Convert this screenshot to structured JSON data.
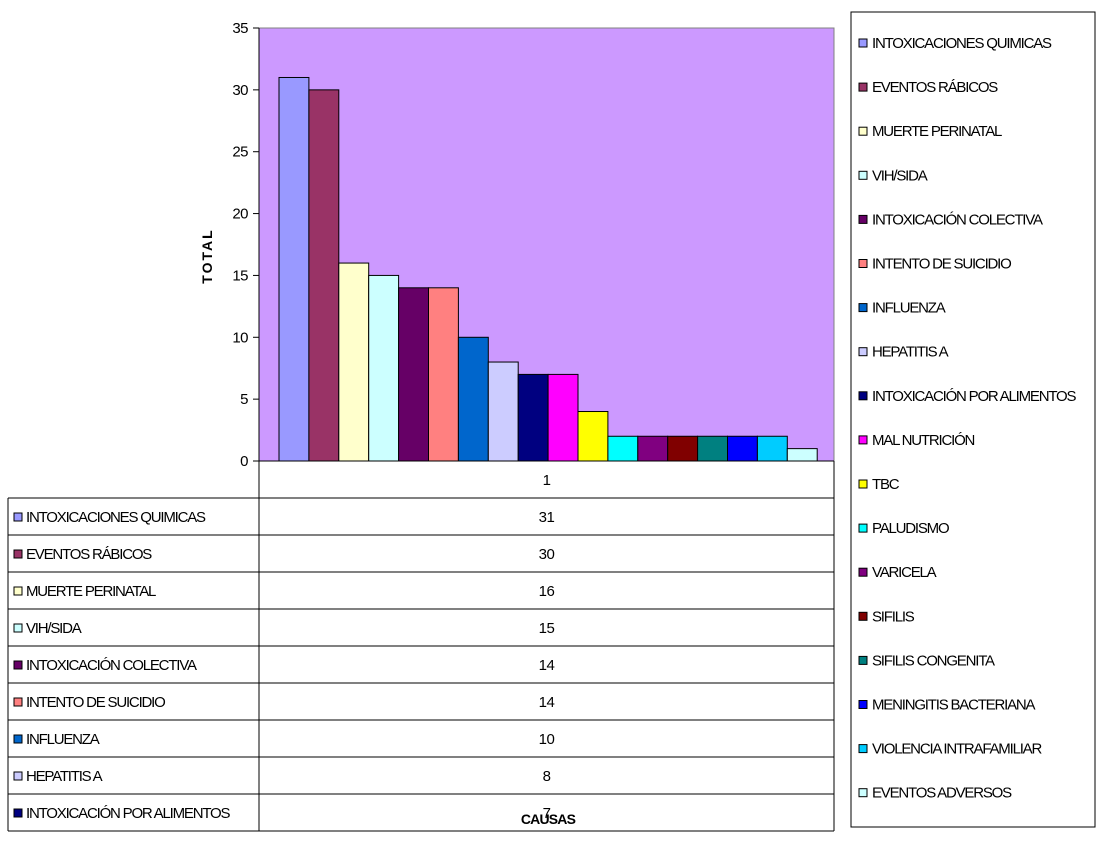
{
  "chart_data": {
    "type": "bar",
    "ylabel": "TOTAL",
    "xlabel": "CAUSAS",
    "categories": [
      "1"
    ],
    "ylim": [
      0,
      35
    ],
    "yticks": [
      0,
      5,
      10,
      15,
      20,
      25,
      30,
      35
    ],
    "grid": false,
    "plot_background": "#CC99FF",
    "legend_position": "right",
    "series": [
      {
        "name": "INTOXICACIONES QUIMICAS",
        "values": [
          31
        ],
        "color": "#9999FF"
      },
      {
        "name": "EVENTOS RÁBICOS",
        "values": [
          30
        ],
        "color": "#993366"
      },
      {
        "name": "MUERTE PERINATAL",
        "values": [
          16
        ],
        "color": "#FFFFCC"
      },
      {
        "name": "VIH/SIDA",
        "values": [
          15
        ],
        "color": "#CCFFFF"
      },
      {
        "name": "INTOXICACIÓN COLECTIVA",
        "values": [
          14
        ],
        "color": "#660066"
      },
      {
        "name": "INTENTO DE SUICIDIO",
        "values": [
          14
        ],
        "color": "#FF8080"
      },
      {
        "name": "INFLUENZA",
        "values": [
          10
        ],
        "color": "#0066CC"
      },
      {
        "name": "HEPATITIS A",
        "values": [
          8
        ],
        "color": "#CCCCFF"
      },
      {
        "name": "INTOXICACIÓN POR ALIMENTOS",
        "values": [
          7
        ],
        "color": "#000080"
      },
      {
        "name": "MAL NUTRICIÓN",
        "values": [
          7
        ],
        "color": "#FF00FF"
      },
      {
        "name": "TBC",
        "values": [
          4
        ],
        "color": "#FFFF00"
      },
      {
        "name": "PALUDISMO",
        "values": [
          2
        ],
        "color": "#00FFFF"
      },
      {
        "name": "VARICELA",
        "values": [
          2
        ],
        "color": "#800080"
      },
      {
        "name": "SIFILIS",
        "values": [
          2
        ],
        "color": "#800000"
      },
      {
        "name": "SIFILIS CONGENITA",
        "values": [
          2
        ],
        "color": "#008080"
      },
      {
        "name": "MENINGITIS BACTERIANA",
        "values": [
          2
        ],
        "color": "#0000FF"
      },
      {
        "name": "VIOLENCIA INTRAFAMILIAR",
        "values": [
          2
        ],
        "color": "#00CCFF"
      },
      {
        "name": "EVENTOS ADVERSOS",
        "values": [
          1
        ],
        "color": "#CCFFFF"
      }
    ],
    "table_visible_rows": 9
  }
}
